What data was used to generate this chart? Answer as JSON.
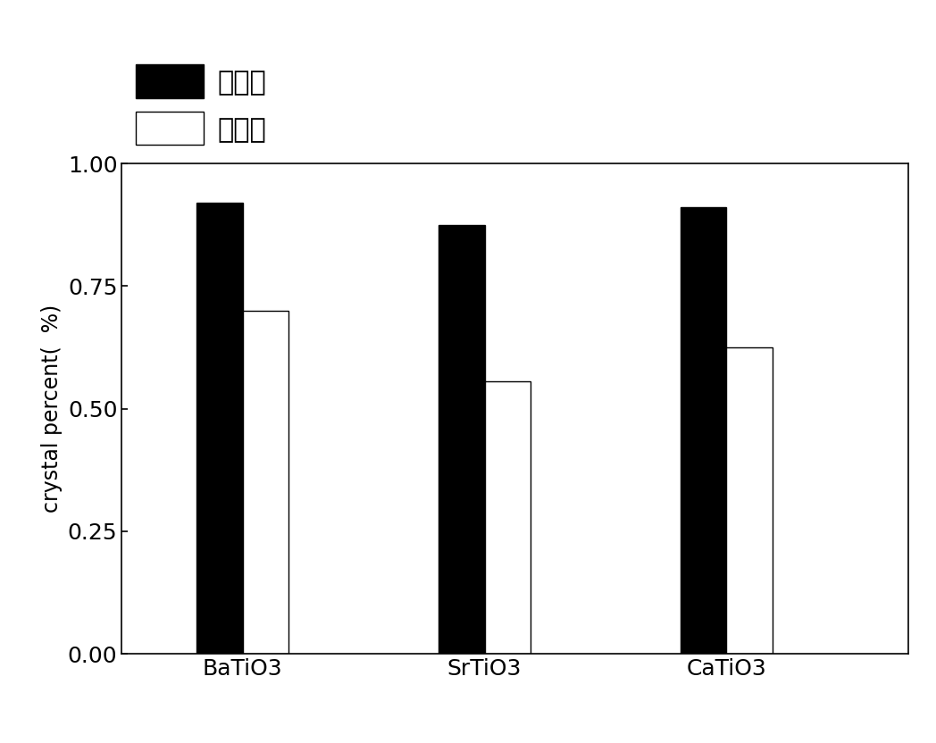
{
  "categories": [
    "BaTiO3",
    "SrTiO3",
    "CaTiO3"
  ],
  "series": {
    "球磨粉": [
      0.92,
      0.875,
      0.91
    ],
    "原始粉": [
      0.7,
      0.555,
      0.625
    ]
  },
  "bar_colors": {
    "球磨粉": "#000000",
    "原始粉": "#ffffff"
  },
  "bar_edgecolor": "#000000",
  "ylabel": "crystal percent(  %)",
  "ylim": [
    0,
    1.0
  ],
  "yticks": [
    0.0,
    0.25,
    0.5,
    0.75,
    1.0
  ],
  "legend_labels": [
    "球磨粉",
    "原始粉"
  ],
  "bar_width": 0.38,
  "group_positions": [
    1.0,
    3.0,
    5.0
  ],
  "xlim": [
    0.0,
    6.5
  ],
  "figsize": [
    10.48,
    8.32
  ],
  "dpi": 100,
  "font_size_ticks": 18,
  "font_size_labels": 17,
  "font_size_legend": 22,
  "legend_fontsize_chinese": 22
}
